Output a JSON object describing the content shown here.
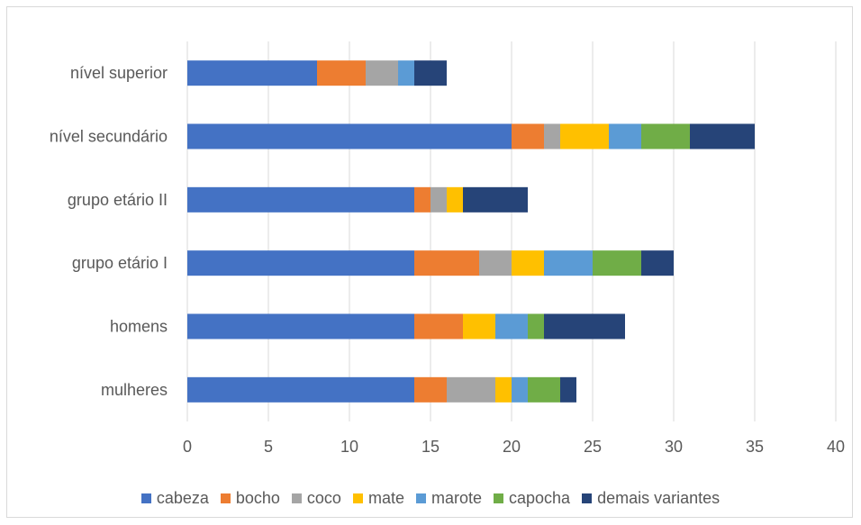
{
  "chart_data": {
    "type": "bar",
    "orientation": "horizontal",
    "stacked": true,
    "categories": [
      "mulheres",
      "homens",
      "grupo etário I",
      "grupo etário II",
      "nível secundário",
      "nível superior"
    ],
    "series": [
      {
        "name": "cabeza",
        "color": "#4472C4",
        "values": [
          14,
          14,
          14,
          14,
          20,
          8
        ]
      },
      {
        "name": "bocho",
        "color": "#ED7D31",
        "values": [
          2,
          3,
          4,
          1,
          2,
          3
        ]
      },
      {
        "name": "coco",
        "color": "#A5A5A5",
        "values": [
          3,
          0,
          2,
          1,
          1,
          2
        ]
      },
      {
        "name": "mate",
        "color": "#FFC000",
        "values": [
          1,
          2,
          2,
          1,
          3,
          0
        ]
      },
      {
        "name": "marote",
        "color": "#5B9BD5",
        "values": [
          1,
          2,
          3,
          0,
          2,
          1
        ]
      },
      {
        "name": "capocha",
        "color": "#70AD47",
        "values": [
          2,
          1,
          3,
          0,
          3,
          0
        ]
      },
      {
        "name": "demais variantes",
        "color": "#264478",
        "values": [
          1,
          5,
          2,
          4,
          4,
          2
        ]
      }
    ],
    "xlim": [
      0,
      40
    ],
    "xticks": [
      "0",
      "5",
      "10",
      "15",
      "20",
      "25",
      "30",
      "35",
      "40"
    ],
    "xtick_values": [
      0,
      5,
      10,
      15,
      20,
      25,
      30,
      35,
      40
    ],
    "grid": "vertical",
    "legend": "bottom",
    "title": "",
    "xlabel": "",
    "ylabel": ""
  }
}
